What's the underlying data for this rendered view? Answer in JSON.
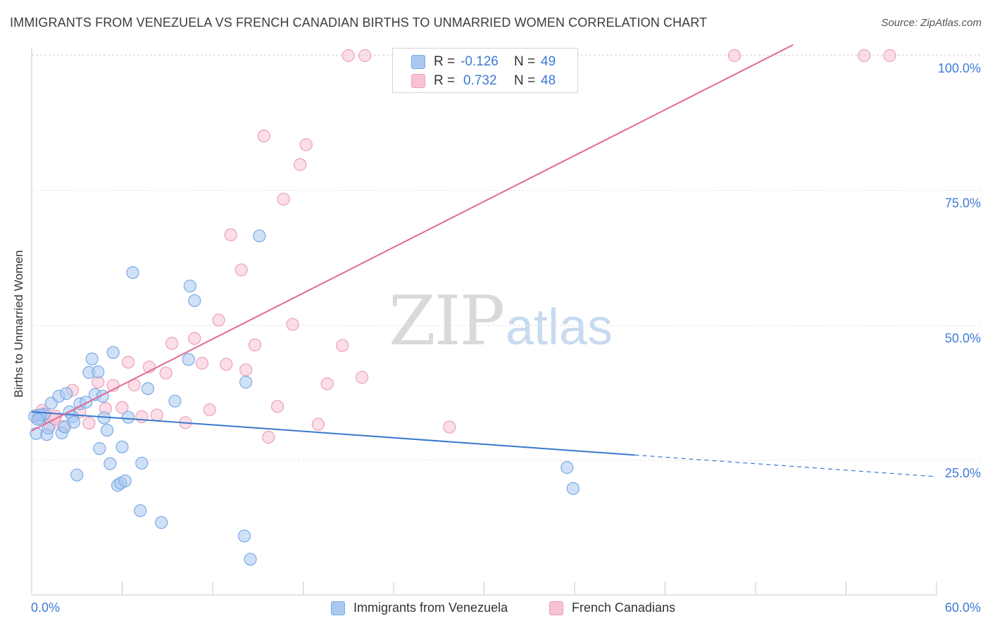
{
  "header": {
    "title": "IMMIGRANTS FROM VENEZUELA VS FRENCH CANADIAN BIRTHS TO UNMARRIED WOMEN CORRELATION CHART",
    "source": "Source: ZipAtlas.com"
  },
  "watermark": {
    "zip": "ZIP",
    "atlas": "atlas"
  },
  "legend": {
    "rows": [
      {
        "r_label": "R =",
        "r_value": "-0.126",
        "n_label": "N =",
        "n_value": "49"
      },
      {
        "r_label": "R =",
        "r_value": "0.732",
        "n_label": "N =",
        "n_value": "48"
      }
    ]
  },
  "chart_data": {
    "type": "scatter",
    "title": "IMMIGRANTS FROM VENEZUELA VS FRENCH CANADIAN BIRTHS TO UNMARRIED WOMEN CORRELATION CHART",
    "xlabel": "",
    "ylabel": "Births to Unmarried Women",
    "xlim": [
      0,
      60
    ],
    "ylim": [
      0,
      102
    ],
    "x_tick_labels": [
      "0.0%",
      "60.0%"
    ],
    "y_tick_labels": [
      "25.0%",
      "50.0%",
      "75.0%",
      "100.0%"
    ],
    "y_ticks": [
      25,
      50,
      75,
      100
    ],
    "grid": true,
    "legend_position": "top-center",
    "colors": {
      "venezuela_fill": "#aac9f0",
      "venezuela_stroke": "#7aaae6",
      "venezuela_line": "#3a78d0",
      "french_fill": "#f7c3d3",
      "french_stroke": "#ee9fb9",
      "french_line": "#e06a93",
      "tick_text": "#3d7bd4",
      "grid": "#e3e3e3"
    },
    "series": [
      {
        "name": "Immigrants from Venezuela",
        "trend": {
          "x0": 0,
          "y0": 34.0,
          "x1": 40.0,
          "y1": 26.0,
          "dash_to_x": 60,
          "dash_to_y": 22.0
        },
        "points": [
          [
            0.3,
            30.0
          ],
          [
            0.5,
            32.8
          ],
          [
            0.8,
            33.5
          ],
          [
            1.0,
            29.8
          ],
          [
            1.1,
            31.0
          ],
          [
            1.3,
            35.6
          ],
          [
            1.8,
            36.9
          ],
          [
            2.0,
            30.1
          ],
          [
            2.2,
            31.2
          ],
          [
            2.3,
            37.4
          ],
          [
            2.5,
            34.0
          ],
          [
            2.7,
            33.1
          ],
          [
            2.8,
            32.1
          ],
          [
            3.0,
            22.3
          ],
          [
            3.2,
            35.5
          ],
          [
            3.6,
            35.8
          ],
          [
            3.8,
            41.3
          ],
          [
            4.0,
            43.8
          ],
          [
            4.2,
            37.2
          ],
          [
            4.4,
            41.4
          ],
          [
            4.5,
            27.2
          ],
          [
            4.7,
            36.9
          ],
          [
            4.8,
            32.9
          ],
          [
            5.0,
            30.6
          ],
          [
            5.2,
            24.4
          ],
          [
            5.4,
            45.0
          ],
          [
            5.7,
            20.4
          ],
          [
            5.9,
            20.8
          ],
          [
            6.0,
            27.5
          ],
          [
            6.2,
            21.2
          ],
          [
            6.4,
            33.0
          ],
          [
            6.7,
            59.8
          ],
          [
            7.2,
            15.7
          ],
          [
            7.3,
            24.5
          ],
          [
            7.7,
            38.3
          ],
          [
            8.6,
            13.5
          ],
          [
            9.5,
            36.0
          ],
          [
            10.4,
            43.7
          ],
          [
            10.5,
            57.3
          ],
          [
            10.8,
            54.6
          ],
          [
            14.1,
            11.0
          ],
          [
            14.2,
            39.5
          ],
          [
            14.5,
            6.7
          ],
          [
            15.1,
            66.6
          ],
          [
            35.5,
            23.7
          ],
          [
            35.9,
            19.8
          ],
          [
            0.2,
            33.2
          ],
          [
            0.6,
            33.4
          ],
          [
            0.4,
            32.6
          ]
        ]
      },
      {
        "name": "French Canadians",
        "trend": {
          "x0": 0,
          "y0": 30.5,
          "x1": 50.5,
          "y1": 102.0
        },
        "points": [
          [
            0.4,
            33.4
          ],
          [
            0.9,
            33.8
          ],
          [
            1.2,
            31.5
          ],
          [
            1.6,
            33.2
          ],
          [
            2.1,
            31.3
          ],
          [
            2.7,
            38.0
          ],
          [
            3.2,
            34.0
          ],
          [
            3.8,
            31.9
          ],
          [
            4.4,
            39.5
          ],
          [
            4.9,
            34.6
          ],
          [
            5.4,
            38.9
          ],
          [
            6.0,
            34.8
          ],
          [
            6.4,
            43.2
          ],
          [
            6.8,
            39.0
          ],
          [
            7.3,
            33.1
          ],
          [
            7.8,
            42.3
          ],
          [
            8.3,
            33.4
          ],
          [
            8.9,
            41.2
          ],
          [
            9.3,
            46.7
          ],
          [
            10.2,
            32.0
          ],
          [
            10.8,
            47.6
          ],
          [
            11.3,
            43.0
          ],
          [
            11.8,
            34.4
          ],
          [
            12.4,
            51.0
          ],
          [
            12.9,
            42.8
          ],
          [
            13.2,
            66.8
          ],
          [
            13.9,
            60.3
          ],
          [
            14.2,
            41.8
          ],
          [
            14.8,
            46.4
          ],
          [
            15.4,
            85.1
          ],
          [
            15.7,
            29.3
          ],
          [
            16.3,
            35.0
          ],
          [
            16.7,
            73.4
          ],
          [
            17.3,
            50.2
          ],
          [
            17.8,
            79.8
          ],
          [
            18.2,
            83.5
          ],
          [
            19.0,
            31.7
          ],
          [
            19.6,
            39.2
          ],
          [
            20.6,
            46.3
          ],
          [
            21.0,
            100.0
          ],
          [
            22.1,
            100.0
          ],
          [
            21.9,
            40.4
          ],
          [
            27.7,
            31.2
          ],
          [
            46.6,
            100.0
          ],
          [
            55.2,
            100.0
          ],
          [
            56.9,
            100.0
          ],
          [
            0.7,
            34.3
          ],
          [
            1.5,
            32.7
          ]
        ]
      }
    ]
  },
  "bottom_legend": {
    "items": [
      {
        "label": "Immigrants from Venezuela"
      },
      {
        "label": "French Canadians"
      }
    ]
  }
}
